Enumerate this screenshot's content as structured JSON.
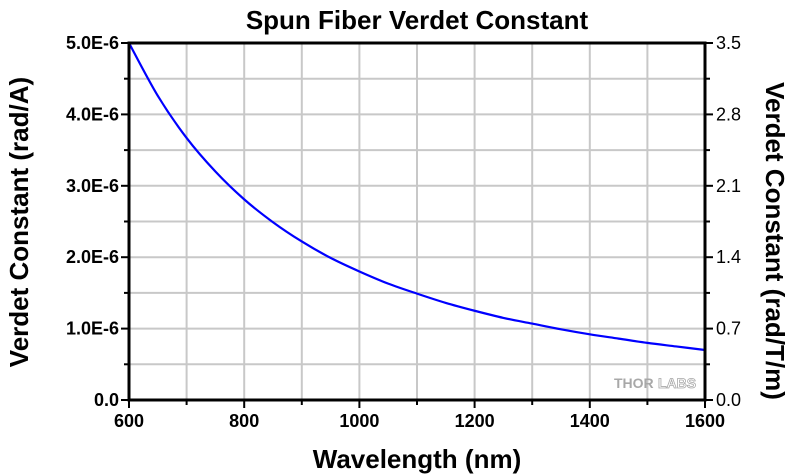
{
  "chart_data": {
    "type": "line",
    "title": "Spun Fiber Verdet Constant",
    "xlabel": "Wavelength (nm)",
    "ylabel": "Verdet Constant (rad/A)",
    "y2label": "Verdet Constant (rad/T/m)",
    "xlim": [
      600,
      1600
    ],
    "ylim": [
      0,
      5e-06
    ],
    "y2lim": [
      0,
      3.5
    ],
    "grid": true,
    "x_ticks": [
      600,
      700,
      800,
      900,
      1000,
      1100,
      1200,
      1300,
      1400,
      1500,
      1600
    ],
    "x_tick_labels": [
      "600",
      "800",
      "1000",
      "1200",
      "1400",
      "1600"
    ],
    "x_tick_label_values": [
      600,
      800,
      1000,
      1200,
      1400,
      1600
    ],
    "y_ticks": [
      0,
      5e-07,
      1e-06,
      1.5e-06,
      2e-06,
      2.5e-06,
      3e-06,
      3.5e-06,
      4e-06,
      4.5e-06,
      5e-06
    ],
    "y_tick_labels": [
      "0.0",
      "1.0E-6",
      "2.0E-6",
      "3.0E-6",
      "4.0E-6",
      "5.0E-6"
    ],
    "y_tick_label_values": [
      0,
      1e-06,
      2e-06,
      3e-06,
      4e-06,
      5e-06
    ],
    "y2_tick_labels": [
      "0.0",
      "0.7",
      "1.4",
      "2.1",
      "2.8",
      "3.5"
    ],
    "y2_tick_label_values": [
      0,
      0.7,
      1.4,
      2.1,
      2.8,
      3.5
    ],
    "series": [
      {
        "name": "Verdet Constant",
        "color": "#0000ff",
        "x": [
          600,
          650,
          700,
          750,
          800,
          850,
          900,
          950,
          1000,
          1050,
          1100,
          1150,
          1200,
          1250,
          1300,
          1350,
          1400,
          1450,
          1500,
          1550,
          1600
        ],
        "y": [
          5e-06,
          4.26e-06,
          3.67e-06,
          3.2e-06,
          2.81e-06,
          2.49e-06,
          2.22e-06,
          1.99e-06,
          1.8e-06,
          1.63e-06,
          1.49e-06,
          1.36e-06,
          1.25e-06,
          1.15e-06,
          1.07e-06,
          9.9e-07,
          9.2e-07,
          8.6e-07,
          8e-07,
          7.5e-07,
          7e-07
        ]
      }
    ],
    "watermark": "THORLABS"
  },
  "colors": {
    "line": "#0000ff",
    "grid": "#c8c8c8",
    "axis": "#000000",
    "watermark": "#a8a8a8"
  }
}
